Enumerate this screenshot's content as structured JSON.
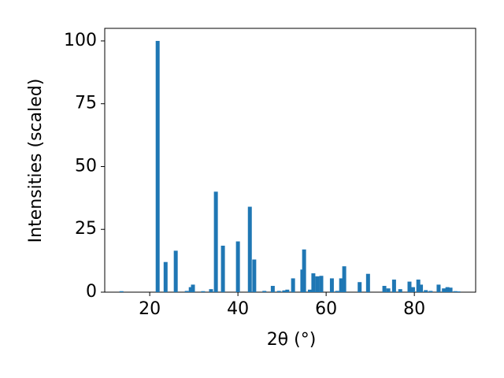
{
  "chart_data": {
    "type": "bar",
    "x_label": "2θ (°)",
    "y_label": "Intensities (scaled)",
    "x": [
      13.6,
      21.8,
      23.6,
      25.9,
      28.4,
      29.3,
      29.8,
      32.1,
      33.9,
      35.0,
      36.6,
      40.0,
      42.7,
      43.7,
      46.0,
      47.9,
      49.3,
      50.5,
      51.2,
      52.5,
      54.6,
      55.0,
      56.3,
      57.1,
      58.0,
      58.9,
      61.3,
      62.5,
      63.4,
      64.1,
      67.6,
      69.5,
      73.2,
      74.1,
      75.4,
      76.8,
      78.9,
      79.7,
      80.9,
      81.5,
      82.6,
      83.7,
      85.5,
      86.7,
      87.5,
      88.2,
      89.3,
      90.0
    ],
    "values": [
      0.4,
      100,
      12,
      16.5,
      0.5,
      2,
      3,
      0.4,
      1.2,
      40,
      18.5,
      20.2,
      34,
      13,
      0.5,
      2.5,
      0.5,
      0.7,
      1,
      5.5,
      9,
      17,
      1,
      7.5,
      6.3,
      6.5,
      5.5,
      0.5,
      5.5,
      10.3,
      4,
      7.3,
      2.5,
      1.5,
      5,
      1.2,
      4.2,
      2,
      5,
      3,
      0.8,
      0.5,
      3,
      1.5,
      2,
      1.8,
      0.4,
      0.3
    ],
    "color": "#1f77b4",
    "xlim": [
      9.8,
      93.9
    ],
    "xticks": [
      20,
      40,
      60,
      80
    ],
    "ylim": [
      0,
      105
    ],
    "yticks": [
      0,
      25,
      50,
      75,
      100
    ],
    "grid": false
  }
}
